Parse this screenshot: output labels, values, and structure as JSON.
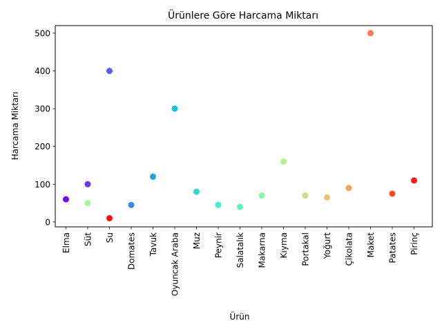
{
  "chart_data": {
    "type": "scatter",
    "title": "Ürünlere Göre Harcama Miktarı",
    "xlabel": "Ürün",
    "ylabel": "Harcama Miktarı",
    "ylim": [
      -13,
      520
    ],
    "yticks": [
      0,
      100,
      200,
      300,
      400,
      500
    ],
    "grid": false,
    "legend": "none",
    "points": [
      {
        "x": "Elma",
        "y": 60,
        "color": "#8000ff"
      },
      {
        "x": "Süt",
        "y": 100,
        "color": "#6a35fd"
      },
      {
        "x": "Süt",
        "y": 50,
        "color": "#a2f893"
      },
      {
        "x": "Su",
        "y": 400,
        "color": "#5060fa"
      },
      {
        "x": "Su",
        "y": 10,
        "color": "#ff0f08"
      },
      {
        "x": "Domates",
        "y": 45,
        "color": "#3a87f3"
      },
      {
        "x": "Tavuk",
        "y": 120,
        "color": "#1aa5eb"
      },
      {
        "x": "Oyuncak Araba",
        "y": 300,
        "color": "#0dc6e2"
      },
      {
        "x": "Muz",
        "y": 80,
        "color": "#2adcd8"
      },
      {
        "x": "Peynir",
        "y": 45,
        "color": "#40f0cc"
      },
      {
        "x": "Salatalık",
        "y": 40,
        "color": "#5af5bf"
      },
      {
        "x": "Makarna",
        "y": 70,
        "color": "#84fba5"
      },
      {
        "x": "Kıyma",
        "y": 160,
        "color": "#b3f090"
      },
      {
        "x": "Portakal",
        "y": 70,
        "color": "#d5dc80"
      },
      {
        "x": "Yoğurt",
        "y": 65,
        "color": "#f0c070"
      },
      {
        "x": "Çikolata",
        "y": 90,
        "color": "#ffa05a"
      },
      {
        "x": "Maket",
        "y": 500,
        "color": "#ff7a4a"
      },
      {
        "x": "Patates",
        "y": 75,
        "color": "#ff4a30"
      },
      {
        "x": "Pirinç",
        "y": 110,
        "color": "#ff1a14"
      }
    ],
    "categories": [
      "Elma",
      "Süt",
      "Su",
      "Domates",
      "Tavuk",
      "Oyuncak Araba",
      "Muz",
      "Peynir",
      "Salatalık",
      "Makarna",
      "Kıyma",
      "Portakal",
      "Yoğurt",
      "Çikolata",
      "Maket",
      "Patates",
      "Pirinç"
    ]
  }
}
